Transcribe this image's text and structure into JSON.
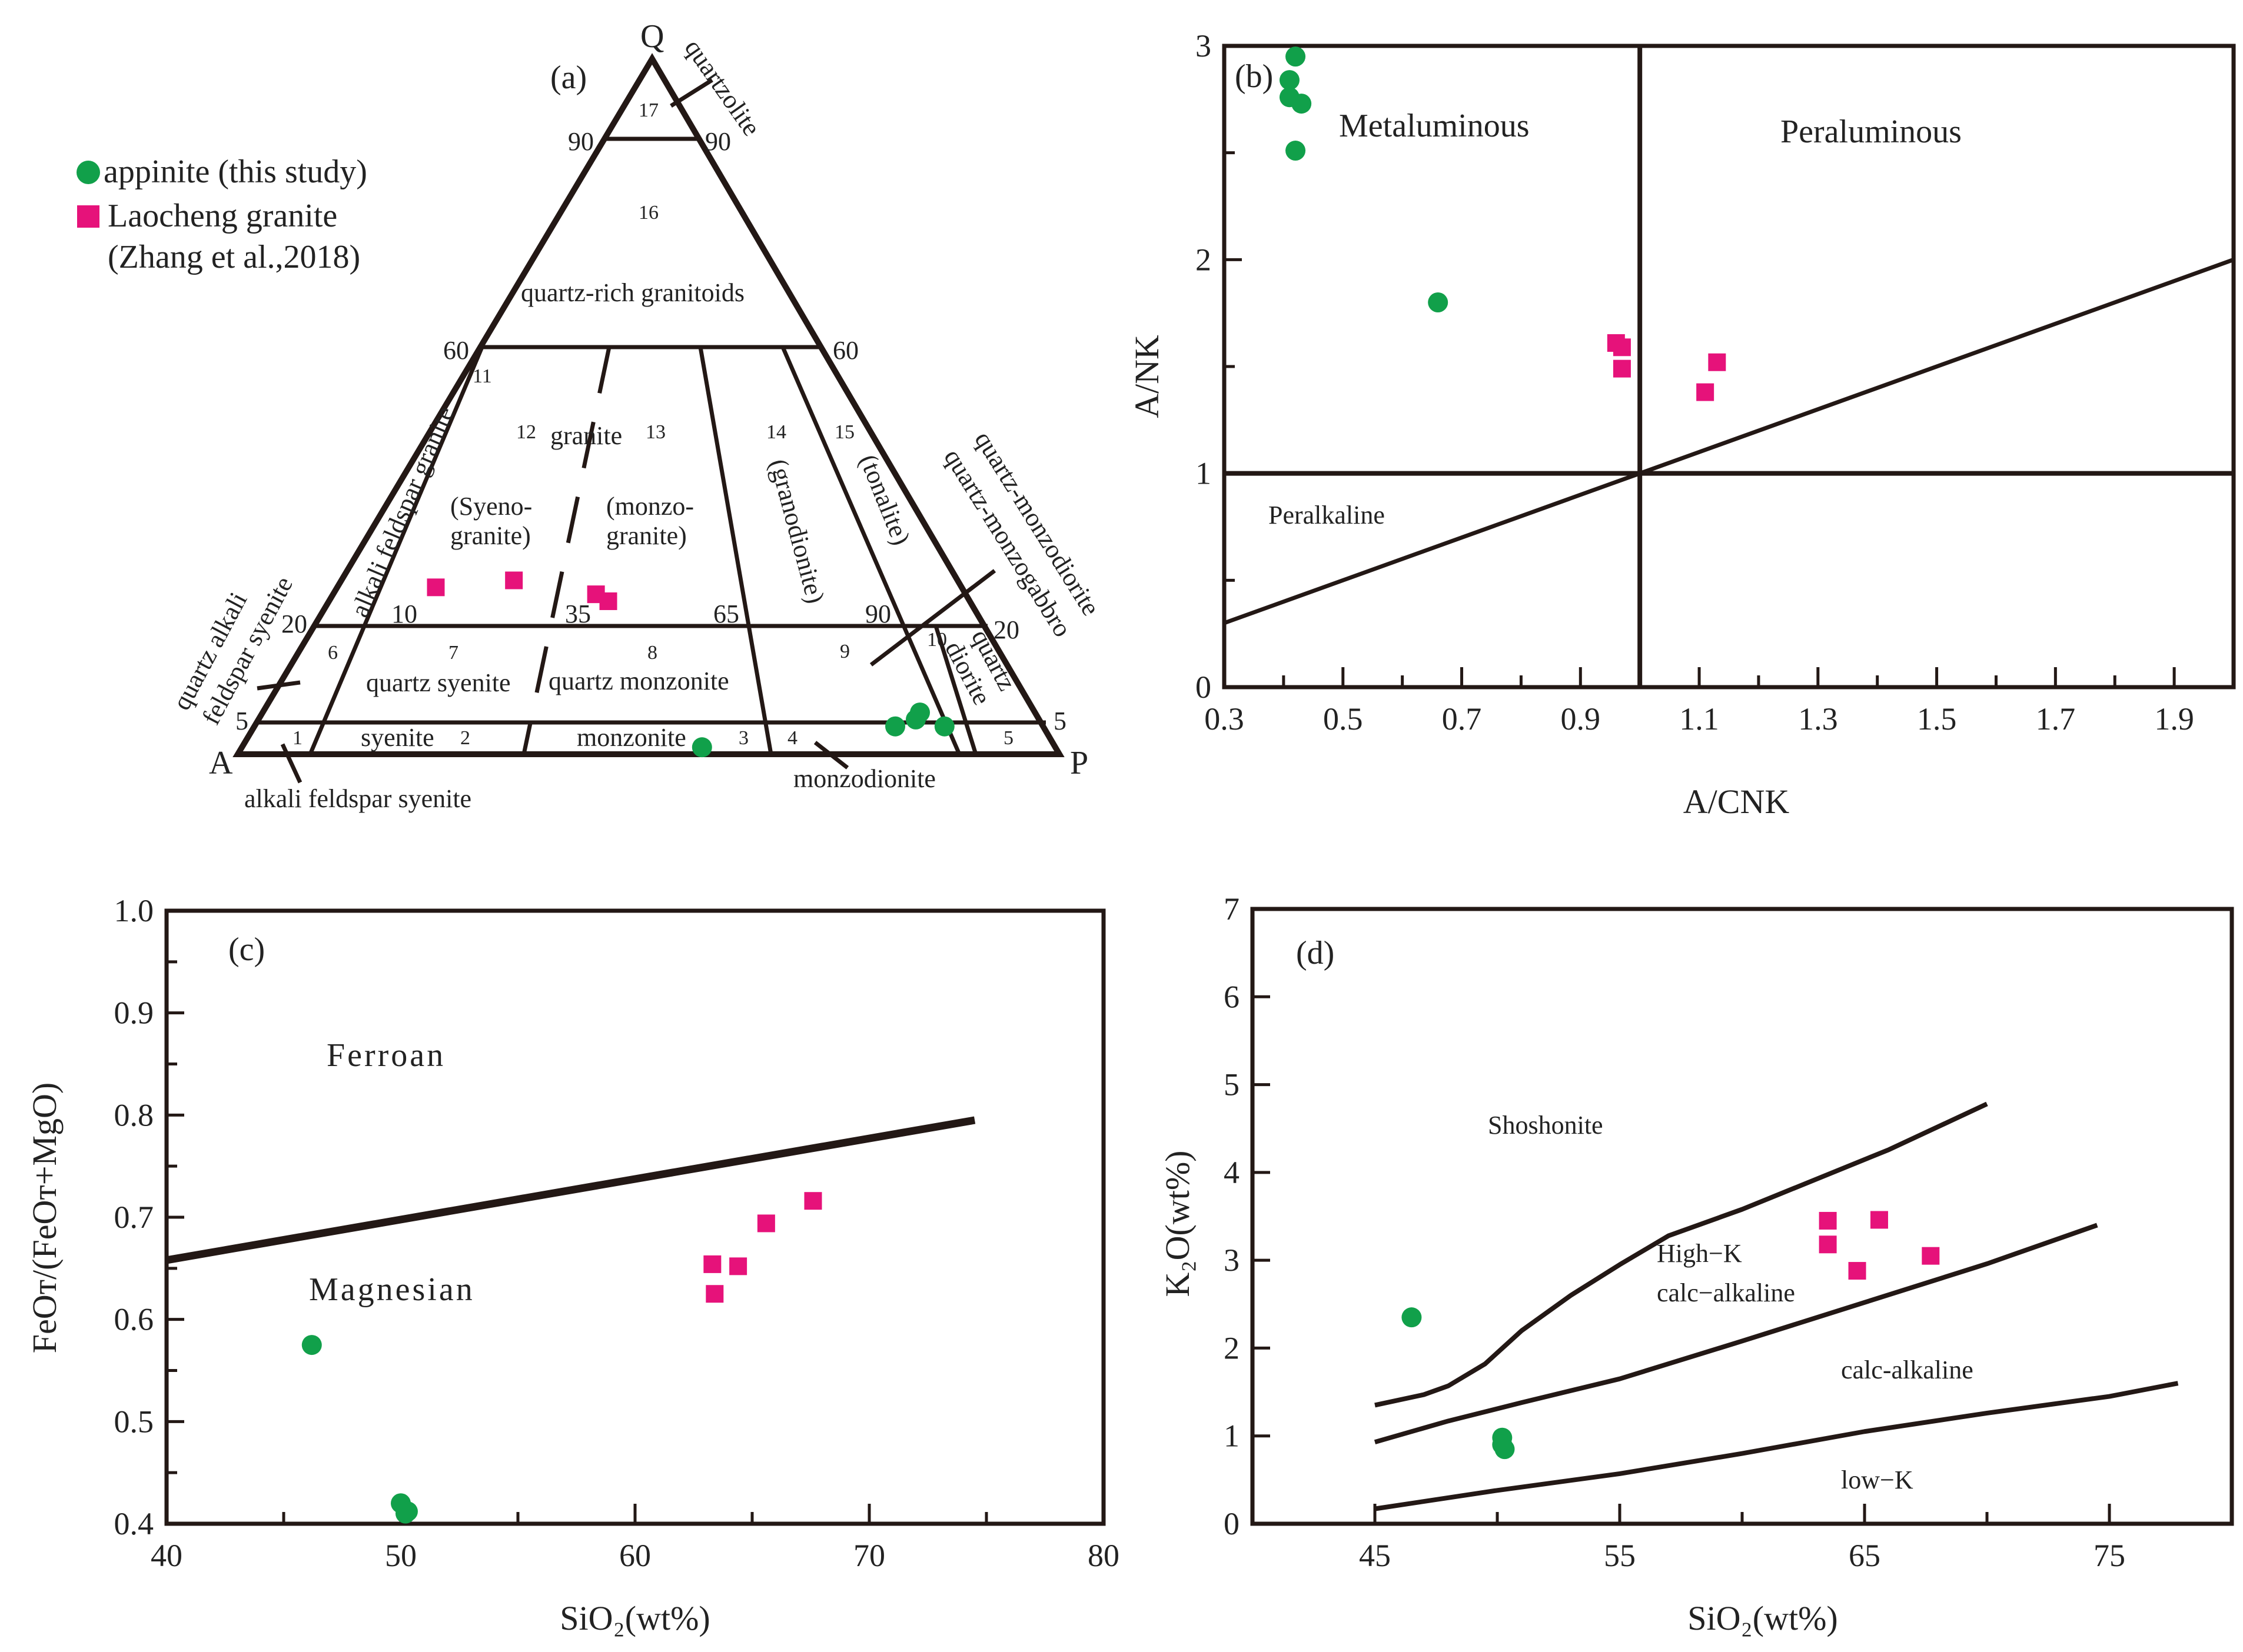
{
  "legend": {
    "appinite": "appinite (this study)",
    "laocheng": "Laocheng granite",
    "laocheng_ref": "(Zhang et al.,2018)"
  },
  "colors": {
    "appinite": "#11a04a",
    "laocheng": "#e6127a",
    "line": "#231815"
  },
  "panel_a": {
    "tag": "(a)",
    "apex_top": "Q",
    "apex_left": "A",
    "apex_right": "P",
    "fields": {
      "f1": "1",
      "f2": "2",
      "f3": "3",
      "f4": "4",
      "f5": "5",
      "f6": "6",
      "f7": "7",
      "f8": "8",
      "f9": "9",
      "f10": "10",
      "f11": "11",
      "f12": "12",
      "f13": "13",
      "f14": "14",
      "f15": "15",
      "f16": "16",
      "f17": "17"
    },
    "edge_ticks": {
      "l90": "90",
      "r90": "90",
      "l60": "60",
      "r60": "60",
      "l20": "20",
      "r20": "20",
      "l5": "5",
      "r5": "5",
      "t10": "10",
      "t35": "35",
      "t65": "65",
      "t90": "90"
    },
    "names": {
      "quartzolite": "quartzolite",
      "qrich": "quartz-rich granitoids",
      "granite": "granite",
      "syeno1": "(Syeno-",
      "syeno2": "granite)",
      "monzo1": "(monzo-",
      "monzo2": "granite)",
      "grano": "(granodionite)",
      "tonal": "(tonalite)",
      "afgranite": "alkali feldspar granite",
      "qafs1": "quartz alkali",
      "qafs2": "feldspar syenite",
      "qmd": "quartz-monzodiorite",
      "qmg": "quartz-monzogabbro",
      "qdio1": "quartz",
      "qdio2": "diorite",
      "qsyen": "quartz  syenite",
      "qmonz": "quartz monzonite",
      "syenite": "syenite",
      "monzonite": "monzonite",
      "monzodionite": "monzodionite",
      "afsyenite": "alkali  feldspar  syenite"
    }
  },
  "chart_data": [
    {
      "panel": "a",
      "type": "scatter",
      "diagram": "ternary QAP",
      "series": [
        {
          "name": "appinite (this study)",
          "points": [
            {
              "A": 0.43,
              "P": 0.56,
              "Q": 0.01
            },
            {
              "A": 0.18,
              "P": 0.78,
              "Q": 0.04
            },
            {
              "A": 0.15,
              "P": 0.8,
              "Q": 0.05
            },
            {
              "A": 0.14,
              "P": 0.8,
              "Q": 0.06
            },
            {
              "A": 0.12,
              "P": 0.84,
              "Q": 0.04
            }
          ]
        },
        {
          "name": "Laocheng granite",
          "points": [
            {
              "A": 0.64,
              "P": 0.12,
              "Q": 0.24
            },
            {
              "A": 0.54,
              "P": 0.21,
              "Q": 0.25
            },
            {
              "A": 0.45,
              "P": 0.32,
              "Q": 0.23
            },
            {
              "A": 0.44,
              "P": 0.34,
              "Q": 0.22
            }
          ]
        }
      ]
    },
    {
      "panel": "b",
      "type": "scatter",
      "tag": "(b)",
      "xlabel": "A/CNK",
      "ylabel": "A/NK",
      "xlim": [
        0.3,
        2.0
      ],
      "ylim": [
        0,
        3
      ],
      "xticks": [
        "0.3",
        "0.5",
        "0.7",
        "0.9",
        "1.1",
        "1.3",
        "1.5",
        "1.7",
        "1.9"
      ],
      "yticks": [
        "0",
        "1",
        "2",
        "3"
      ],
      "fields": [
        "Metaluminous",
        "Peraluminous",
        "Peralkaline"
      ],
      "series": [
        {
          "name": "appinite (this study)",
          "x": [
            0.42,
            0.41,
            0.41,
            0.43,
            0.42,
            0.66
          ],
          "y": [
            2.95,
            2.84,
            2.76,
            2.73,
            2.51,
            1.8
          ]
        },
        {
          "name": "Laocheng granite",
          "x": [
            0.96,
            0.97,
            0.97,
            1.11,
            1.13
          ],
          "y": [
            1.61,
            1.59,
            1.49,
            1.38,
            1.52
          ]
        }
      ]
    },
    {
      "panel": "c",
      "type": "scatter",
      "tag": "(c)",
      "xlabel": "SiO₂(wt%)",
      "ylabel": "FeOᴛ/(FeOᴛ+MgO)",
      "xlim": [
        40,
        80
      ],
      "ylim": [
        0.4,
        1.0
      ],
      "xticks": [
        "40",
        "50",
        "60",
        "70",
        "80"
      ],
      "yticks": [
        "0.4",
        "0.5",
        "0.6",
        "0.7",
        "0.8",
        "0.9",
        "1.0"
      ],
      "fields": [
        "Ferroan",
        "Magnesian"
      ],
      "series": [
        {
          "name": "appinite (this study)",
          "x": [
            46.2,
            50.0,
            50.2,
            50.3
          ],
          "y": [
            0.575,
            0.42,
            0.41,
            0.412
          ]
        },
        {
          "name": "Laocheng granite",
          "x": [
            63.3,
            63.4,
            64.4,
            65.6,
            67.6
          ],
          "y": [
            0.654,
            0.625,
            0.652,
            0.694,
            0.716
          ]
        }
      ]
    },
    {
      "panel": "d",
      "type": "scatter",
      "tag": "(d)",
      "xlabel": "SiO₂(wt%)",
      "ylabel": "K₂O(wt%)",
      "xlim": [
        40,
        80
      ],
      "ylim": [
        0,
        7
      ],
      "xticks": [
        "45",
        "55",
        "65",
        "75"
      ],
      "yticks": [
        "0",
        "1",
        "2",
        "3",
        "4",
        "5",
        "6",
        "7"
      ],
      "fields": [
        "Shoshonite",
        "High−K",
        "calc−alkaline",
        "calc-alkaline",
        "low−K"
      ],
      "series": [
        {
          "name": "appinite (this study)",
          "x": [
            46.5,
            50.2,
            50.2,
            50.3
          ],
          "y": [
            2.35,
            0.98,
            0.9,
            0.85
          ]
        },
        {
          "name": "Laocheng granite",
          "x": [
            63.5,
            63.5,
            64.7,
            65.6,
            67.7
          ],
          "y": [
            3.45,
            3.18,
            2.88,
            3.46,
            3.05
          ]
        }
      ]
    }
  ]
}
